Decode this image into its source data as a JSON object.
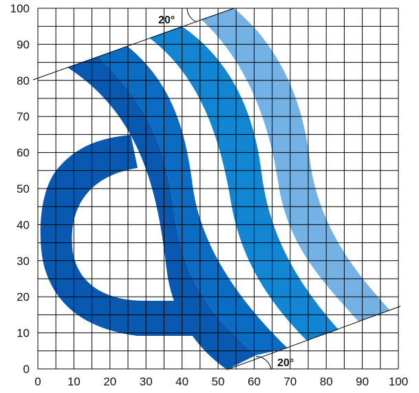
{
  "diagram": {
    "x_axis": {
      "ticks": [
        "0",
        "10",
        "20",
        "30",
        "40",
        "50",
        "60",
        "70",
        "80",
        "90",
        "100"
      ]
    },
    "y_axis": {
      "ticks": [
        "0",
        "10",
        "20",
        "30",
        "40",
        "50",
        "60",
        "70",
        "80",
        "90",
        "100"
      ]
    },
    "angle_labels": {
      "top": "20°",
      "bottom": "20°"
    },
    "colors": {
      "band_1": "#0a59b0",
      "band_2": "#0a6cc2",
      "band_3": "#1286d2",
      "band_4": "#74b2e6",
      "grid": "#000000",
      "background": "#ffffff"
    }
  }
}
